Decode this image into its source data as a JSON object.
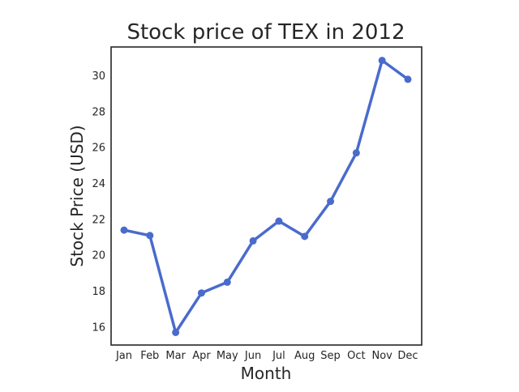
{
  "chart_data": {
    "type": "line",
    "title": "Stock price of TEX in 2012",
    "xlabel": "Month",
    "ylabel": "Stock Price (USD)",
    "categories": [
      "Jan",
      "Feb",
      "Mar",
      "Apr",
      "May",
      "Jun",
      "Jul",
      "Aug",
      "Sep",
      "Oct",
      "Nov",
      "Dec"
    ],
    "series": [
      {
        "values": [
          21.4,
          21.1,
          15.7,
          17.9,
          18.5,
          20.8,
          21.9,
          21.05,
          23.0,
          25.7,
          30.85,
          29.8
        ]
      }
    ],
    "yticks": [
      16,
      18,
      20,
      22,
      24,
      26,
      28,
      30
    ],
    "ylim": [
      15.0,
      31.6
    ],
    "grid": false,
    "line_color": "#4a6bcc",
    "axis_color": "#262626"
  }
}
